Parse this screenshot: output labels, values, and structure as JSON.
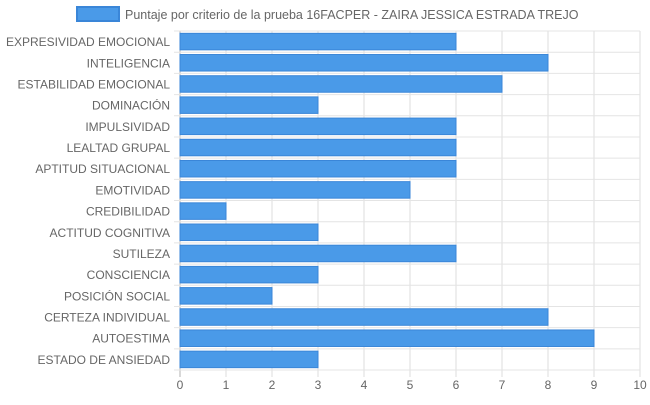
{
  "chart_data": {
    "type": "bar",
    "orientation": "horizontal",
    "legend_position": "top",
    "grid": true,
    "series": [
      {
        "name": "Puntaje por criterio de la prueba 16FACPER - ZAIRA JESSICA ESTRADA TREJO",
        "color": "#4a9ae8",
        "border_color": "#3a86d8",
        "values": [
          6,
          8,
          7,
          3,
          6,
          6,
          6,
          5,
          1,
          3,
          6,
          3,
          2,
          8,
          9,
          3
        ]
      }
    ],
    "categories": [
      "EXPRESIVIDAD EMOCIONAL",
      "INTELIGENCIA",
      "ESTABILIDAD EMOCIONAL",
      "DOMINACIÓN",
      "IMPULSIVIDAD",
      "LEALTAD GRUPAL",
      "APTITUD SITUACIONAL",
      "EMOTIVIDAD",
      "CREDIBILIDAD",
      "ACTITUD COGNITIVA",
      "SUTILEZA",
      "CONSCIENCIA",
      "POSICIÓN SOCIAL",
      "CERTEZA INDIVIDUAL",
      "AUTOESTIMA",
      "ESTADO DE ANSIEDAD"
    ],
    "xlim": [
      0,
      10
    ],
    "x_ticks": [
      "0",
      "1",
      "2",
      "3",
      "4",
      "5",
      "6",
      "7",
      "8",
      "9",
      "10"
    ]
  }
}
